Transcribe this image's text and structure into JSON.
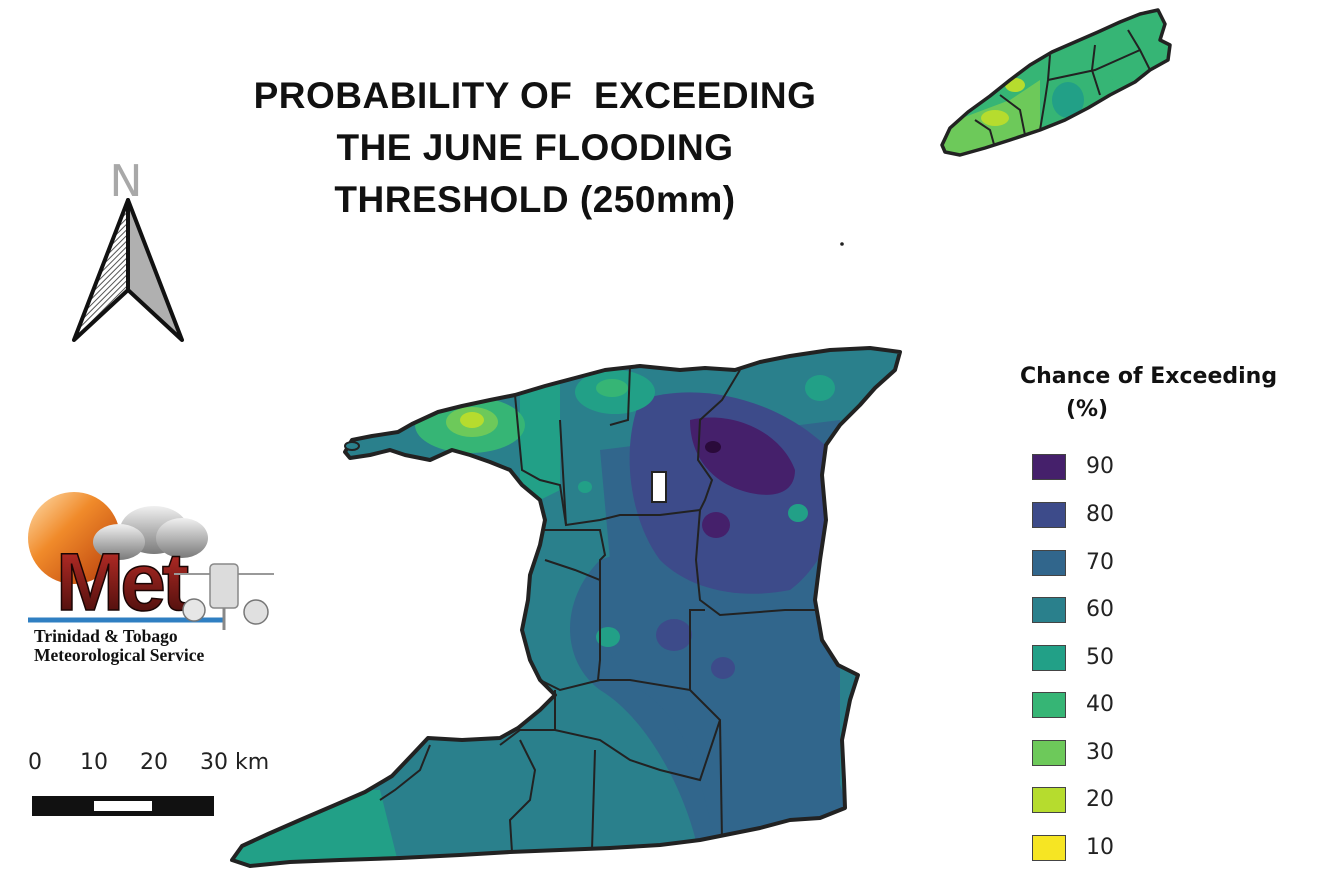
{
  "title": {
    "line1": "PROBABILITY OF  EXCEEDING",
    "line2": "THE JUNE FLOODING",
    "line3": "THRESHOLD (250mm)"
  },
  "north_arrow": {
    "letter": "N"
  },
  "logo": {
    "wordmark": "Met",
    "org_line1": "Trinidad & Tobago",
    "org_line2": "Meteorological Service"
  },
  "scale_bar": {
    "labels": [
      "0",
      "10",
      "20",
      "30 km"
    ]
  },
  "legend": {
    "title_line1": "Chance of Exceeding",
    "title_line2": "      (%)",
    "items": [
      {
        "label": "90",
        "color": "#45206b"
      },
      {
        "label": "80",
        "color": "#3d4b8a"
      },
      {
        "label": "70",
        "color": "#31668c"
      },
      {
        "label": "60",
        "color": "#2a808c"
      },
      {
        "label": "50",
        "color": "#22a087"
      },
      {
        "label": "40",
        "color": "#36b575"
      },
      {
        "label": "30",
        "color": "#6dc95a"
      },
      {
        "label": "20",
        "color": "#b6dc2e"
      },
      {
        "label": "10",
        "color": "#f6e523"
      }
    ]
  }
}
